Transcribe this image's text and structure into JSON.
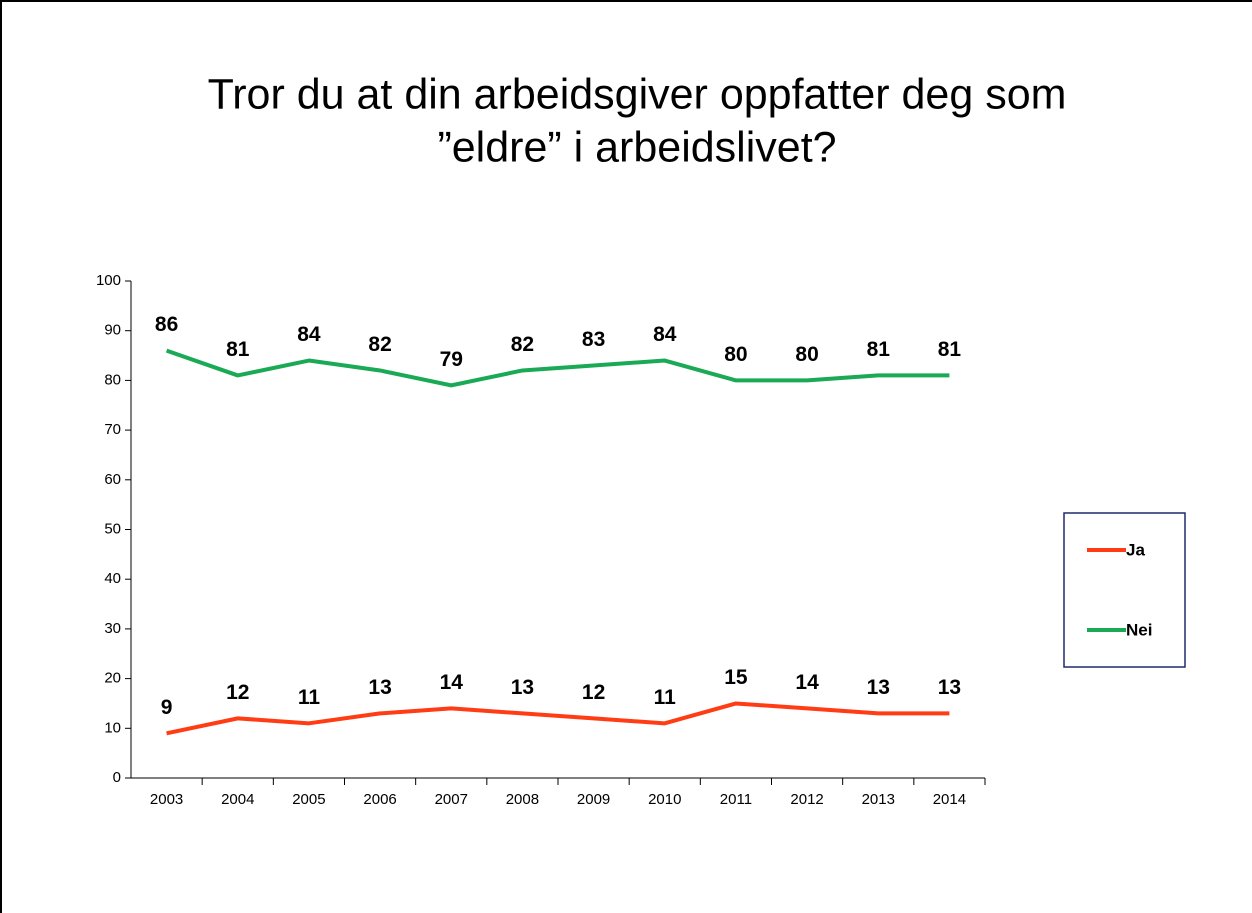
{
  "chart_data": {
    "type": "line",
    "title": [
      "Tror du at din arbeidsgiver oppfatter deg som",
      "”eldre” i arbeidslivet?"
    ],
    "categories": [
      "2003",
      "2004",
      "2005",
      "2006",
      "2007",
      "2008",
      "2009",
      "2010",
      "2011",
      "2012",
      "2013",
      "2014"
    ],
    "series": [
      {
        "name": "Ja",
        "color": "#ff3c14",
        "values": [
          9,
          12,
          11,
          13,
          14,
          13,
          12,
          11,
          15,
          14,
          13,
          13
        ]
      },
      {
        "name": "Nei",
        "color": "#1aaa55",
        "values": [
          86,
          81,
          84,
          82,
          79,
          82,
          83,
          84,
          80,
          80,
          81,
          81
        ]
      }
    ],
    "ylim": [
      0,
      100
    ],
    "yticks": [
      0,
      10,
      20,
      30,
      40,
      50,
      60,
      70,
      80,
      90,
      100
    ],
    "grid": false,
    "legend": "right",
    "data_labels": true
  }
}
